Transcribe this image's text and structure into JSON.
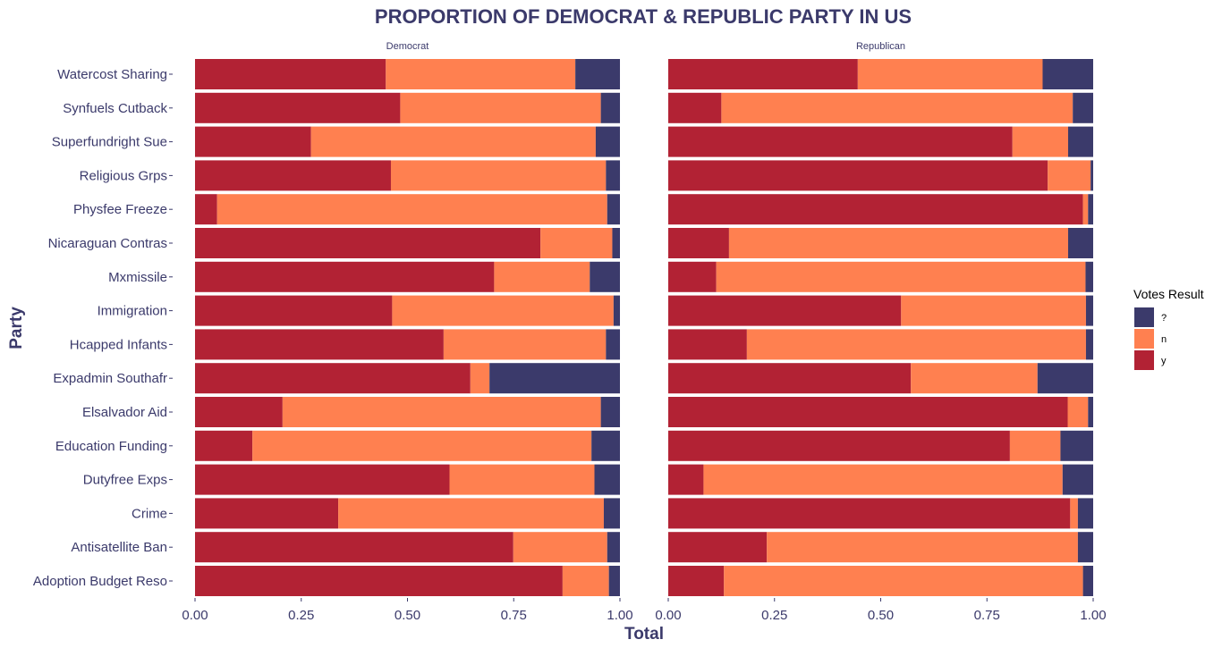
{
  "chart_data": {
    "type": "bar",
    "orientation": "horizontal",
    "stacked": true,
    "title": "PROPORTION OF DEMOCRAT & REPUBLIC PARTY IN US",
    "xlabel": "Total",
    "ylabel": "Party",
    "xlim": [
      0,
      1
    ],
    "x_ticks": [
      "0.00",
      "0.25",
      "0.50",
      "0.75",
      "1.00"
    ],
    "grid": false,
    "legend": {
      "title": "Votes Result",
      "position": "right",
      "items": [
        {
          "label": "?",
          "color": "#3b3a6b"
        },
        {
          "label": "n",
          "color": "#ff8050"
        },
        {
          "label": "y",
          "color": "#b22234"
        }
      ]
    },
    "categories": [
      "Watercost Sharing",
      "Synfuels Cutback",
      "Superfundright Sue",
      "Religious Grps",
      "Physfee Freeze",
      "Nicaraguan Contras",
      "Mxmissile",
      "Immigration",
      "Hcapped Infants",
      "Expadmin Southafr",
      "Elsalvador Aid",
      "Education Funding",
      "Dutyfree Exps",
      "Crime",
      "Antisatellite Ban",
      "Adoption Budget Reso"
    ],
    "facets": [
      {
        "name": "Democrat",
        "series": [
          {
            "name": "y",
            "values": [
              0.449,
              0.483,
              0.273,
              0.461,
              0.052,
              0.813,
              0.704,
              0.464,
              0.585,
              0.648,
              0.206,
              0.135,
              0.599,
              0.337,
              0.749,
              0.865
            ]
          },
          {
            "name": "n",
            "values": [
              0.446,
              0.472,
              0.67,
              0.506,
              0.918,
              0.169,
              0.225,
              0.521,
              0.382,
              0.045,
              0.749,
              0.798,
              0.341,
              0.625,
              0.221,
              0.109
            ]
          },
          {
            "name": "?",
            "values": [
              0.105,
              0.045,
              0.057,
              0.033,
              0.03,
              0.018,
              0.071,
              0.015,
              0.033,
              0.307,
              0.045,
              0.067,
              0.06,
              0.038,
              0.03,
              0.026
            ]
          }
        ]
      },
      {
        "name": "Republican",
        "series": [
          {
            "name": "y",
            "values": [
              0.446,
              0.125,
              0.81,
              0.893,
              0.976,
              0.143,
              0.113,
              0.548,
              0.185,
              0.571,
              0.94,
              0.804,
              0.083,
              0.946,
              0.232,
              0.131
            ]
          },
          {
            "name": "n",
            "values": [
              0.435,
              0.827,
              0.131,
              0.101,
              0.012,
              0.798,
              0.869,
              0.435,
              0.798,
              0.298,
              0.048,
              0.119,
              0.845,
              0.018,
              0.732,
              0.845
            ]
          },
          {
            "name": "?",
            "values": [
              0.119,
              0.048,
              0.059,
              0.006,
              0.012,
              0.059,
              0.018,
              0.017,
              0.017,
              0.131,
              0.012,
              0.077,
              0.072,
              0.036,
              0.036,
              0.024
            ]
          }
        ]
      }
    ]
  }
}
